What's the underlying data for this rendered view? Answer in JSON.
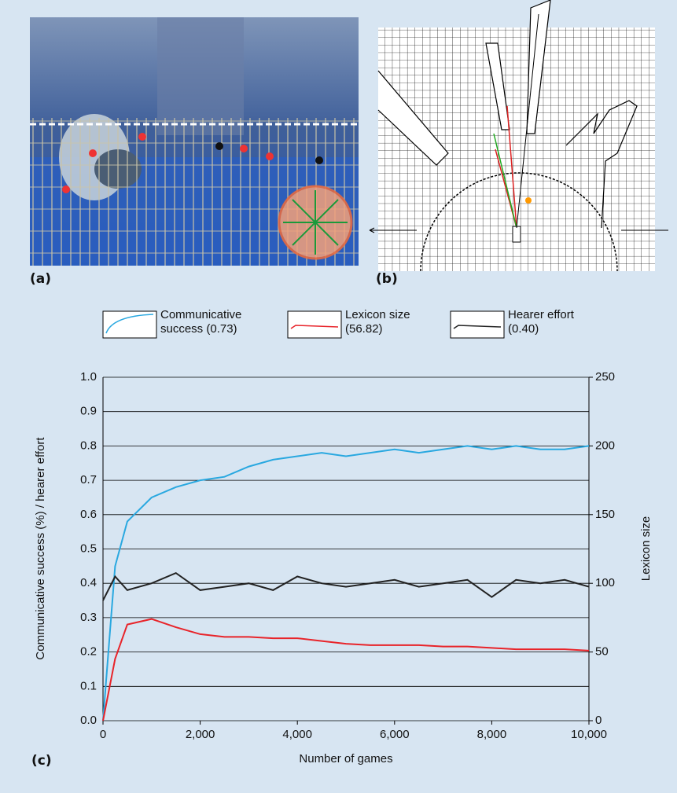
{
  "panels": {
    "a": "(a)",
    "b": "(b)",
    "c": "(c)"
  },
  "chart_data": {
    "type": "line",
    "xlabel": "Number of games",
    "ylabel": "Communicative success (%) / hearer effort",
    "y2label": "Lexicon size",
    "x": [
      0,
      250,
      500,
      1000,
      1500,
      2000,
      2500,
      3000,
      3500,
      4000,
      4500,
      5000,
      5500,
      6000,
      6500,
      7000,
      7500,
      8000,
      8500,
      9000,
      9500,
      10000
    ],
    "series": [
      {
        "name": "Communicative success (0.73)",
        "color": "#29a8e0",
        "values": [
          0,
          0.45,
          0.58,
          0.65,
          0.68,
          0.7,
          0.71,
          0.74,
          0.76,
          0.77,
          0.78,
          0.77,
          0.78,
          0.79,
          0.78,
          0.79,
          0.8,
          0.79,
          0.8,
          0.79,
          0.79,
          0.8
        ]
      },
      {
        "name": "Lexicon size (56.82)",
        "color": "#e8242a",
        "axis": "y2",
        "values": [
          0,
          45,
          70,
          74,
          68,
          63,
          61,
          61,
          60,
          60,
          58,
          56,
          55,
          55,
          55,
          54,
          54,
          53,
          52,
          52,
          52,
          51
        ]
      },
      {
        "name": "Hearer effort (0.40)",
        "color": "#222222",
        "values": [
          0.35,
          0.42,
          0.38,
          0.4,
          0.43,
          0.38,
          0.39,
          0.4,
          0.38,
          0.42,
          0.4,
          0.39,
          0.4,
          0.41,
          0.39,
          0.4,
          0.41,
          0.36,
          0.41,
          0.4,
          0.41,
          0.39
        ]
      }
    ],
    "xlim": [
      0,
      10000
    ],
    "xticks": [
      0,
      {
        "value": 2000,
        "label": "2,000"
      },
      {
        "value": 4000,
        "label": "4,000"
      },
      {
        "value": 6000,
        "label": "6,000"
      },
      {
        "value": 8000,
        "label": "8,000"
      },
      {
        "value": 10000,
        "label": "10,000"
      }
    ],
    "ylim": [
      0,
      1
    ],
    "yticks": [
      {
        "value": 0,
        "label": "0.0"
      },
      0.1,
      0.2,
      0.3,
      0.4,
      0.5,
      0.6,
      0.7,
      0.8,
      0.9,
      {
        "value": 1,
        "label": "1.0"
      }
    ],
    "y2lim": [
      0,
      250
    ],
    "y2ticks": [
      0,
      50,
      100,
      150,
      200,
      250
    ],
    "grid": true
  }
}
